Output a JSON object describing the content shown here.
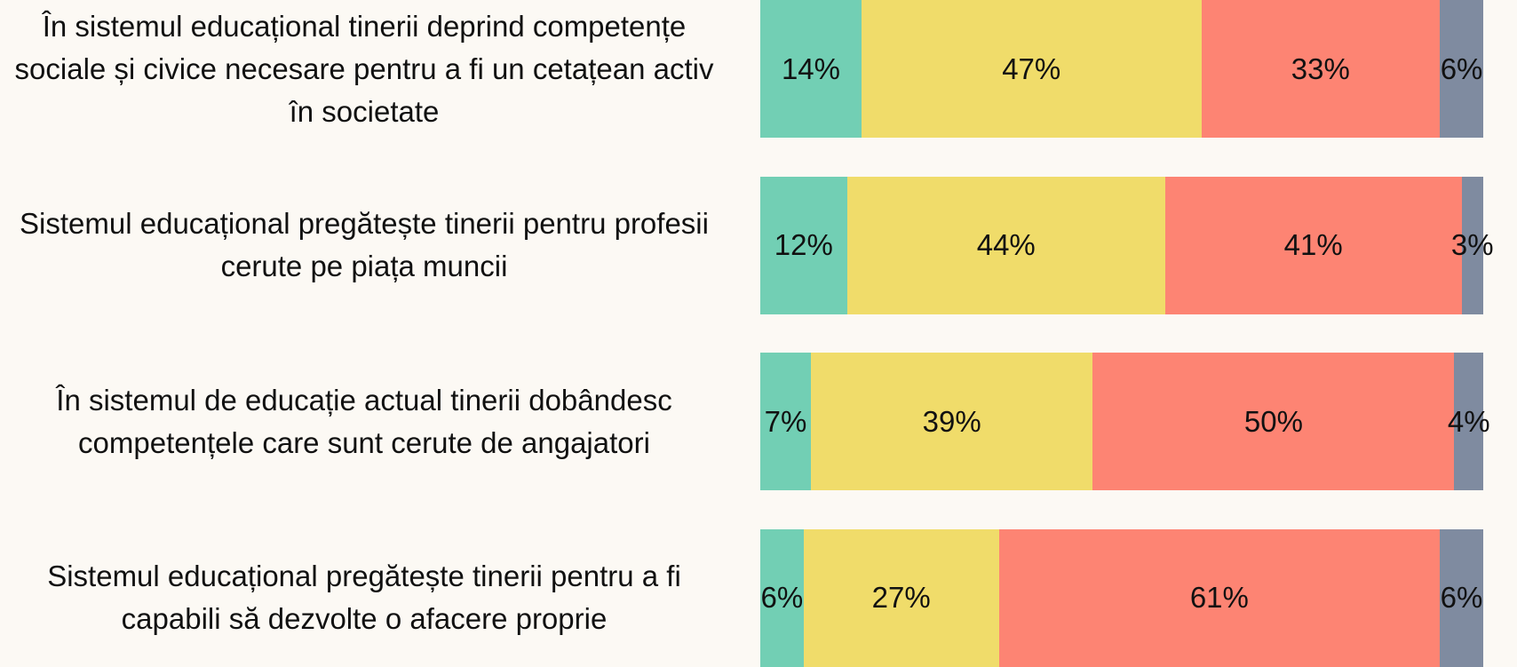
{
  "chart_data": {
    "type": "bar",
    "orientation": "horizontal",
    "stacked": true,
    "categories": [
      "În sistemul educațional tinerii deprind competențe sociale și civice necesare pentru a fi un cetațean activ în societate",
      "Sistemul educațional pregătește tinerii pentru profesii cerute pe piața muncii",
      "În sistemul de educație actual tinerii dobândesc competențele care sunt cerute de angajatori",
      "Sistemul educațional pregătește tinerii pentru a fi capabili să dezvolte o afacere proprie"
    ],
    "xlim": [
      0,
      100
    ],
    "series": [
      {
        "color": "#72cfb4",
        "values": [
          14,
          12,
          7,
          6
        ],
        "value_labels": [
          "14%",
          "12%",
          "7%",
          "6%"
        ]
      },
      {
        "color": "#f0dc6a",
        "values": [
          47,
          44,
          39,
          27
        ],
        "value_labels": [
          "47%",
          "44%",
          "39%",
          "27%"
        ]
      },
      {
        "color": "#fd8473",
        "values": [
          33,
          41,
          50,
          61
        ],
        "value_labels": [
          "33%",
          "41%",
          "50%",
          "61%"
        ]
      },
      {
        "color": "#7f8ba0",
        "values": [
          6,
          3,
          4,
          6
        ],
        "value_labels": [
          "6%",
          "3%",
          "4%",
          "6%"
        ]
      }
    ]
  }
}
